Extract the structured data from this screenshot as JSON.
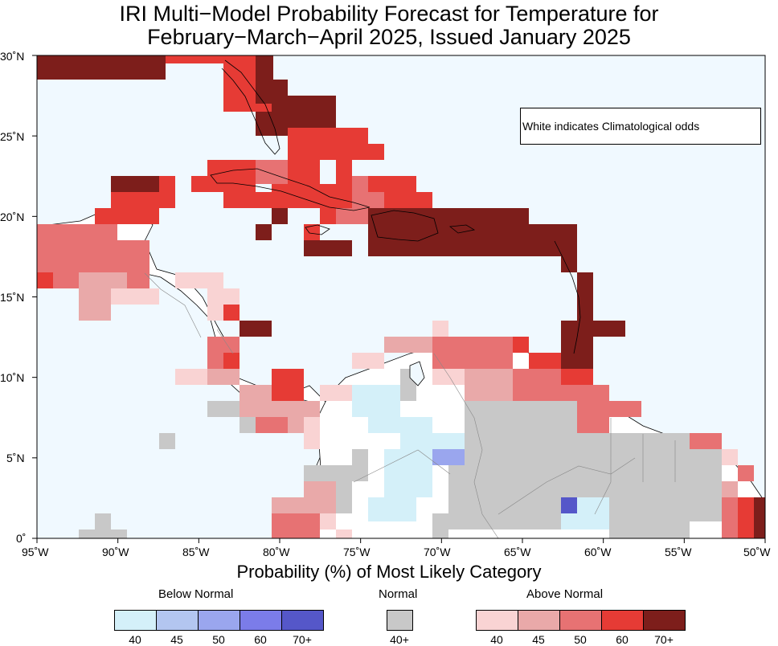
{
  "title_line1": "IRI Multi−Model Probability Forecast for Temperature for",
  "title_line2": "February−March−April 2025, Issued January 2025",
  "note": "White indicates Climatological odds",
  "x_axis_title": "Probability (%) of Most Likely Category",
  "lat_ticks": [
    "30˚N",
    "25˚N",
    "20˚N",
    "15˚N",
    "10˚N",
    "5˚N",
    "0˚"
  ],
  "lon_ticks": [
    "95˚W",
    "90˚W",
    "85˚W",
    "80˚W",
    "75˚W",
    "70˚W",
    "65˚W",
    "60˚W",
    "55˚W",
    "50˚W"
  ],
  "legend": {
    "below": {
      "title": "Below Normal",
      "labels": [
        "40",
        "45",
        "50",
        "60",
        "70+"
      ],
      "colors": [
        "#d4f0f9",
        "#b3c6f0",
        "#9aa6ee",
        "#7b7ce9",
        "#5557c9"
      ]
    },
    "normal": {
      "title": "Normal",
      "labels": [
        "40+"
      ],
      "colors": [
        "#c8c8c8"
      ]
    },
    "above": {
      "title": "Above Normal",
      "labels": [
        "40",
        "45",
        "50",
        "60",
        "70+"
      ],
      "colors": [
        "#f9d3d3",
        "#e9a9a9",
        "#e77273",
        "#e63b35",
        "#7d1e1b"
      ]
    }
  },
  "colors": {
    "ocean": "#f0f9ff",
    "land_climatology": "#ffffff"
  }
}
